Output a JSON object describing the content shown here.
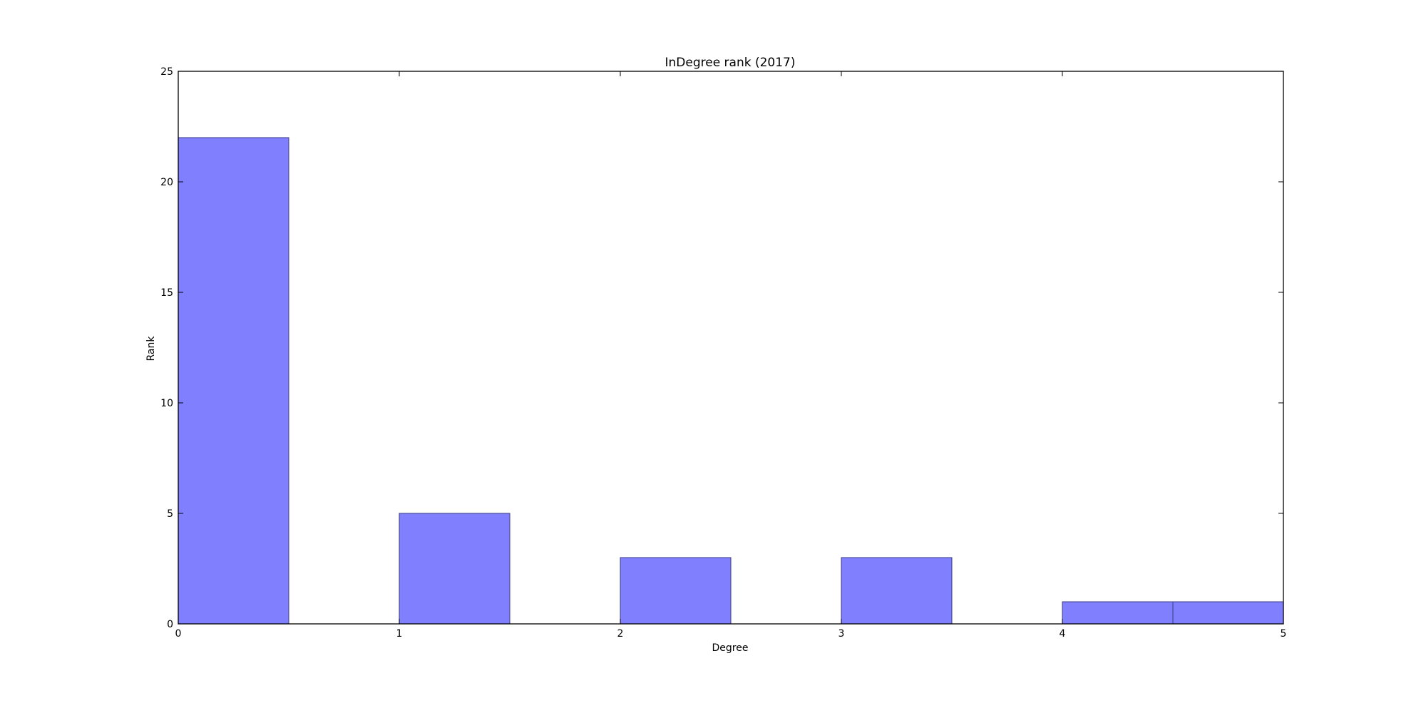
{
  "chart_data": {
    "type": "bar",
    "title": "InDegree rank (2017)",
    "xlabel": "Degree",
    "ylabel": "Rank",
    "xlim": [
      0,
      5
    ],
    "ylim": [
      0,
      25
    ],
    "xticks": [
      "0",
      "1",
      "2",
      "3",
      "4",
      "5"
    ],
    "yticks": [
      "0",
      "5",
      "10",
      "15",
      "20",
      "25"
    ],
    "bin_width": 0.5,
    "bins": [
      {
        "x_start": 0.0,
        "value": 22
      },
      {
        "x_start": 1.0,
        "value": 5
      },
      {
        "x_start": 2.0,
        "value": 3
      },
      {
        "x_start": 3.0,
        "value": 3
      },
      {
        "x_start": 4.0,
        "value": 1
      },
      {
        "x_start": 4.5,
        "value": 1
      }
    ],
    "bar_color": "#8080ff",
    "bar_edge_color": "#3a3a80",
    "grid": false
  }
}
